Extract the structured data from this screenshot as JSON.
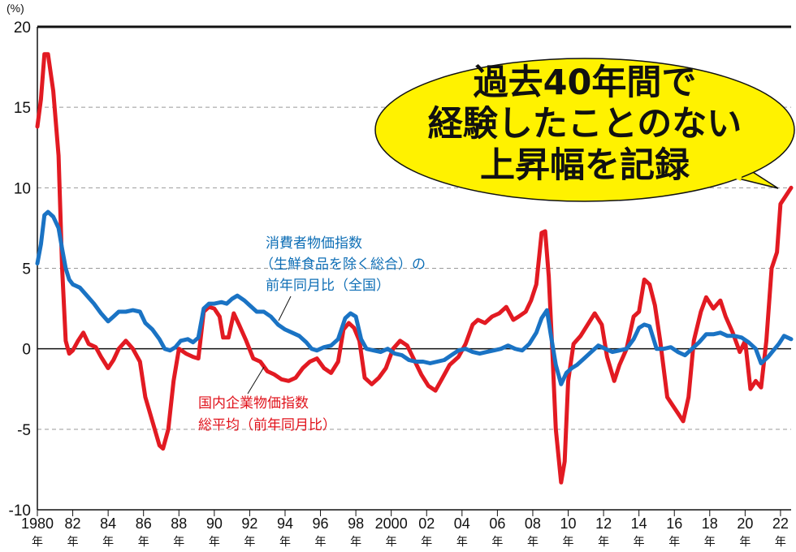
{
  "chart_data": {
    "type": "line",
    "unit_label": "(%)",
    "ylim": [
      -10,
      20
    ],
    "yticks": [
      20,
      15,
      10,
      5,
      0,
      -5,
      -10
    ],
    "xlim": [
      1980,
      2022.6
    ],
    "xticks": [
      {
        "year": 1980,
        "label": "1980",
        "nen": "年"
      },
      {
        "year": 1982,
        "label": "82",
        "nen": "年"
      },
      {
        "year": 1984,
        "label": "84",
        "nen": "年"
      },
      {
        "year": 1986,
        "label": "86",
        "nen": "年"
      },
      {
        "year": 1988,
        "label": "88",
        "nen": "年"
      },
      {
        "year": 1990,
        "label": "90",
        "nen": "年"
      },
      {
        "year": 1992,
        "label": "92",
        "nen": "年"
      },
      {
        "year": 1994,
        "label": "94",
        "nen": "年"
      },
      {
        "year": 1996,
        "label": "96",
        "nen": "年"
      },
      {
        "year": 1998,
        "label": "98",
        "nen": "年"
      },
      {
        "year": 2000,
        "label": "2000",
        "nen": "年"
      },
      {
        "year": 2002,
        "label": "02",
        "nen": "年"
      },
      {
        "year": 2004,
        "label": "04",
        "nen": "年"
      },
      {
        "year": 2006,
        "label": "06",
        "nen": "年"
      },
      {
        "year": 2008,
        "label": "08",
        "nen": "年"
      },
      {
        "year": 2010,
        "label": "10",
        "nen": "年"
      },
      {
        "year": 2012,
        "label": "12",
        "nen": "年"
      },
      {
        "year": 2014,
        "label": "14",
        "nen": "年"
      },
      {
        "year": 2016,
        "label": "16",
        "nen": "年"
      },
      {
        "year": 2018,
        "label": "18",
        "nen": "年"
      },
      {
        "year": 2020,
        "label": "20",
        "nen": "年"
      },
      {
        "year": 2022,
        "label": "22",
        "nen": "年"
      }
    ],
    "grid": "dashed",
    "series": [
      {
        "name": "消費者物価指数（生鮮食品を除く総合）の前年同月比",
        "label_lines": [
          "消費者物価指数",
          "（生鮮食品を除く総合）の",
          "前年同月比（全国）"
        ],
        "color": "#1a73c4",
        "points": [
          [
            1980.0,
            5.3
          ],
          [
            1980.2,
            6.5
          ],
          [
            1980.4,
            8.3
          ],
          [
            1980.6,
            8.5
          ],
          [
            1980.9,
            8.2
          ],
          [
            1981.2,
            7.5
          ],
          [
            1981.4,
            6.2
          ],
          [
            1981.6,
            5.0
          ],
          [
            1981.8,
            4.3
          ],
          [
            1982.0,
            4.0
          ],
          [
            1982.4,
            3.8
          ],
          [
            1982.8,
            3.3
          ],
          [
            1983.2,
            2.8
          ],
          [
            1983.6,
            2.2
          ],
          [
            1984.0,
            1.7
          ],
          [
            1984.3,
            2.0
          ],
          [
            1984.6,
            2.3
          ],
          [
            1985.0,
            2.3
          ],
          [
            1985.4,
            2.4
          ],
          [
            1985.8,
            2.3
          ],
          [
            1986.1,
            1.6
          ],
          [
            1986.5,
            1.2
          ],
          [
            1986.9,
            0.6
          ],
          [
            1987.2,
            0.0
          ],
          [
            1987.5,
            -0.1
          ],
          [
            1987.8,
            0.1
          ],
          [
            1988.1,
            0.5
          ],
          [
            1988.5,
            0.6
          ],
          [
            1988.8,
            0.4
          ],
          [
            1989.1,
            0.7
          ],
          [
            1989.4,
            2.5
          ],
          [
            1989.7,
            2.8
          ],
          [
            1990.0,
            2.8
          ],
          [
            1990.4,
            2.9
          ],
          [
            1990.7,
            2.8
          ],
          [
            1991.0,
            3.1
          ],
          [
            1991.3,
            3.3
          ],
          [
            1991.7,
            3.0
          ],
          [
            1992.0,
            2.7
          ],
          [
            1992.4,
            2.3
          ],
          [
            1992.8,
            2.3
          ],
          [
            1993.2,
            2.0
          ],
          [
            1993.6,
            1.5
          ],
          [
            1994.0,
            1.2
          ],
          [
            1994.4,
            1.0
          ],
          [
            1994.8,
            0.8
          ],
          [
            1995.2,
            0.4
          ],
          [
            1995.5,
            0.0
          ],
          [
            1995.8,
            -0.1
          ],
          [
            1996.2,
            0.1
          ],
          [
            1996.6,
            0.2
          ],
          [
            1997.0,
            0.6
          ],
          [
            1997.4,
            1.9
          ],
          [
            1997.7,
            2.2
          ],
          [
            1998.0,
            2.0
          ],
          [
            1998.3,
            0.6
          ],
          [
            1998.6,
            0.0
          ],
          [
            1999.0,
            -0.1
          ],
          [
            1999.4,
            -0.2
          ],
          [
            1999.8,
            0.0
          ],
          [
            2000.2,
            -0.3
          ],
          [
            2000.6,
            -0.4
          ],
          [
            2001.0,
            -0.7
          ],
          [
            2001.4,
            -0.8
          ],
          [
            2001.8,
            -0.8
          ],
          [
            2002.2,
            -0.9
          ],
          [
            2002.6,
            -0.8
          ],
          [
            2003.0,
            -0.7
          ],
          [
            2003.4,
            -0.4
          ],
          [
            2003.8,
            -0.1
          ],
          [
            2004.2,
            0.0
          ],
          [
            2004.6,
            -0.2
          ],
          [
            2005.0,
            -0.3
          ],
          [
            2005.4,
            -0.2
          ],
          [
            2005.8,
            -0.1
          ],
          [
            2006.2,
            0.0
          ],
          [
            2006.6,
            0.2
          ],
          [
            2007.0,
            0.0
          ],
          [
            2007.4,
            -0.1
          ],
          [
            2007.8,
            0.3
          ],
          [
            2008.2,
            1.0
          ],
          [
            2008.5,
            1.9
          ],
          [
            2008.8,
            2.4
          ],
          [
            2009.0,
            1.0
          ],
          [
            2009.3,
            -1.0
          ],
          [
            2009.6,
            -2.2
          ],
          [
            2009.9,
            -1.5
          ],
          [
            2010.2,
            -1.2
          ],
          [
            2010.5,
            -1.0
          ],
          [
            2010.9,
            -0.6
          ],
          [
            2011.3,
            -0.2
          ],
          [
            2011.7,
            0.2
          ],
          [
            2012.1,
            0.0
          ],
          [
            2012.5,
            -0.2
          ],
          [
            2012.9,
            -0.1
          ],
          [
            2013.3,
            0.0
          ],
          [
            2013.7,
            0.6
          ],
          [
            2014.0,
            1.3
          ],
          [
            2014.3,
            1.5
          ],
          [
            2014.6,
            1.4
          ],
          [
            2015.0,
            0.0
          ],
          [
            2015.4,
            0.0
          ],
          [
            2015.8,
            0.1
          ],
          [
            2016.2,
            -0.2
          ],
          [
            2016.6,
            -0.4
          ],
          [
            2017.0,
            0.0
          ],
          [
            2017.4,
            0.4
          ],
          [
            2017.8,
            0.9
          ],
          [
            2018.2,
            0.9
          ],
          [
            2018.6,
            1.0
          ],
          [
            2019.0,
            0.8
          ],
          [
            2019.4,
            0.8
          ],
          [
            2019.8,
            0.7
          ],
          [
            2020.2,
            0.4
          ],
          [
            2020.6,
            0.0
          ],
          [
            2020.9,
            -0.9
          ],
          [
            2021.3,
            -0.5
          ],
          [
            2021.6,
            -0.1
          ],
          [
            2021.9,
            0.3
          ],
          [
            2022.2,
            0.8
          ],
          [
            2022.6,
            0.6
          ]
        ]
      },
      {
        "name": "国内企業物価指数総平均（前年同月比）",
        "label_lines": [
          "国内企業物価指数",
          "総平均（前年同月比）"
        ],
        "color": "#e21a22",
        "points": [
          [
            1980.0,
            13.8
          ],
          [
            1980.2,
            15.5
          ],
          [
            1980.4,
            18.3
          ],
          [
            1980.6,
            18.3
          ],
          [
            1980.9,
            16.0
          ],
          [
            1981.2,
            12.0
          ],
          [
            1981.4,
            5.0
          ],
          [
            1981.6,
            0.5
          ],
          [
            1981.8,
            -0.3
          ],
          [
            1982.0,
            -0.1
          ],
          [
            1982.3,
            0.5
          ],
          [
            1982.6,
            1.0
          ],
          [
            1982.9,
            0.3
          ],
          [
            1983.3,
            0.1
          ],
          [
            1983.6,
            -0.5
          ],
          [
            1984.0,
            -1.2
          ],
          [
            1984.3,
            -0.7
          ],
          [
            1984.6,
            0.0
          ],
          [
            1985.0,
            0.5
          ],
          [
            1985.4,
            0.0
          ],
          [
            1985.8,
            -0.8
          ],
          [
            1986.1,
            -3.0
          ],
          [
            1986.5,
            -4.5
          ],
          [
            1986.9,
            -6.0
          ],
          [
            1987.1,
            -6.2
          ],
          [
            1987.4,
            -5.0
          ],
          [
            1987.7,
            -2.0
          ],
          [
            1988.0,
            0.0
          ],
          [
            1988.4,
            -0.3
          ],
          [
            1988.8,
            -0.5
          ],
          [
            1989.1,
            -0.6
          ],
          [
            1989.4,
            2.3
          ],
          [
            1989.7,
            2.6
          ],
          [
            1990.0,
            2.5
          ],
          [
            1990.3,
            2.0
          ],
          [
            1990.5,
            0.7
          ],
          [
            1990.8,
            0.7
          ],
          [
            1991.1,
            2.2
          ],
          [
            1991.4,
            1.5
          ],
          [
            1991.8,
            0.5
          ],
          [
            1992.2,
            -0.6
          ],
          [
            1992.6,
            -0.8
          ],
          [
            1993.0,
            -1.4
          ],
          [
            1993.4,
            -1.6
          ],
          [
            1993.8,
            -1.9
          ],
          [
            1994.2,
            -2.0
          ],
          [
            1994.6,
            -1.8
          ],
          [
            1995.0,
            -1.2
          ],
          [
            1995.4,
            -0.8
          ],
          [
            1995.8,
            -0.6
          ],
          [
            1996.2,
            -1.2
          ],
          [
            1996.6,
            -1.5
          ],
          [
            1997.0,
            -0.8
          ],
          [
            1997.3,
            1.2
          ],
          [
            1997.6,
            1.6
          ],
          [
            1997.9,
            1.3
          ],
          [
            1998.2,
            0.5
          ],
          [
            1998.5,
            -1.8
          ],
          [
            1998.9,
            -2.2
          ],
          [
            1999.3,
            -1.8
          ],
          [
            1999.7,
            -1.2
          ],
          [
            2000.1,
            0.0
          ],
          [
            2000.5,
            0.5
          ],
          [
            2000.9,
            0.2
          ],
          [
            2001.3,
            -0.7
          ],
          [
            2001.7,
            -1.6
          ],
          [
            2002.1,
            -2.3
          ],
          [
            2002.5,
            -2.6
          ],
          [
            2002.9,
            -1.8
          ],
          [
            2003.3,
            -1.0
          ],
          [
            2003.8,
            -0.5
          ],
          [
            2004.2,
            0.3
          ],
          [
            2004.6,
            1.5
          ],
          [
            2004.9,
            1.8
          ],
          [
            2005.3,
            1.6
          ],
          [
            2005.7,
            2.0
          ],
          [
            2006.1,
            2.2
          ],
          [
            2006.5,
            2.6
          ],
          [
            2006.9,
            1.8
          ],
          [
            2007.2,
            2.0
          ],
          [
            2007.6,
            2.3
          ],
          [
            2007.9,
            3.0
          ],
          [
            2008.2,
            4.0
          ],
          [
            2008.5,
            7.2
          ],
          [
            2008.7,
            7.3
          ],
          [
            2008.9,
            4.5
          ],
          [
            2009.1,
            0.0
          ],
          [
            2009.3,
            -5.0
          ],
          [
            2009.6,
            -8.3
          ],
          [
            2009.8,
            -7.0
          ],
          [
            2010.0,
            -2.0
          ],
          [
            2010.3,
            0.3
          ],
          [
            2010.7,
            0.8
          ],
          [
            2011.1,
            1.5
          ],
          [
            2011.5,
            2.2
          ],
          [
            2011.9,
            1.5
          ],
          [
            2012.2,
            -0.5
          ],
          [
            2012.6,
            -2.0
          ],
          [
            2012.9,
            -1.0
          ],
          [
            2013.3,
            0.0
          ],
          [
            2013.7,
            2.0
          ],
          [
            2014.0,
            2.3
          ],
          [
            2014.3,
            4.3
          ],
          [
            2014.6,
            4.0
          ],
          [
            2014.9,
            2.7
          ],
          [
            2015.2,
            0.5
          ],
          [
            2015.6,
            -3.0
          ],
          [
            2015.9,
            -3.5
          ],
          [
            2016.2,
            -4.0
          ],
          [
            2016.5,
            -4.5
          ],
          [
            2016.8,
            -3.0
          ],
          [
            2017.1,
            0.5
          ],
          [
            2017.5,
            2.3
          ],
          [
            2017.8,
            3.2
          ],
          [
            2018.2,
            2.5
          ],
          [
            2018.6,
            3.0
          ],
          [
            2018.9,
            2.0
          ],
          [
            2019.3,
            1.0
          ],
          [
            2019.7,
            -0.2
          ],
          [
            2020.0,
            0.5
          ],
          [
            2020.3,
            -2.5
          ],
          [
            2020.6,
            -2.0
          ],
          [
            2020.9,
            -2.4
          ],
          [
            2021.2,
            0.5
          ],
          [
            2021.5,
            5.0
          ],
          [
            2021.8,
            6.0
          ],
          [
            2022.0,
            9.0
          ],
          [
            2022.3,
            9.5
          ],
          [
            2022.6,
            10.0
          ]
        ]
      }
    ],
    "annotation": {
      "lines": [
        "過去40年間で",
        "経験したことのない",
        "上昇幅を記録"
      ],
      "bubble_color": "#fff200"
    }
  }
}
